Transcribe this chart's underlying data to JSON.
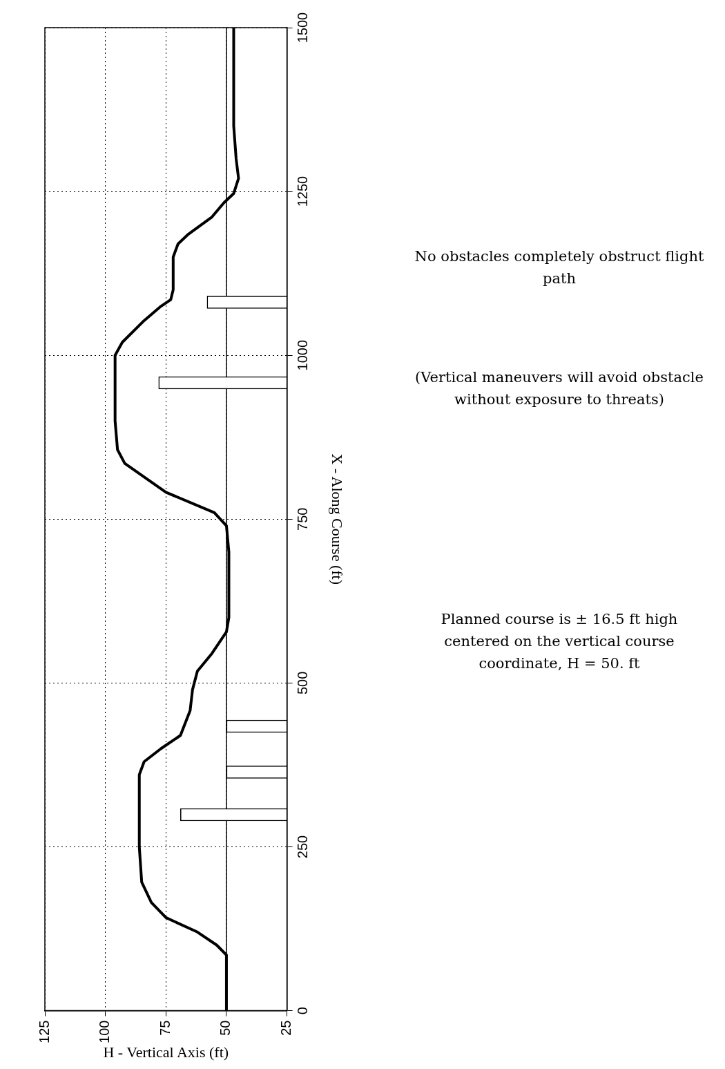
{
  "chart_data": {
    "type": "line",
    "orientation": "horizontal",
    "xlabel": "H - Vertical Axis (ft)",
    "ylabel": "X - Along Course (ft)",
    "xlim": [
      125,
      25
    ],
    "xticks": [
      125,
      100,
      75,
      50,
      25
    ],
    "ylim": [
      0,
      1500
    ],
    "yticks": [
      0,
      250,
      500,
      750,
      1000,
      1250,
      1500
    ],
    "grid": true,
    "ref_lines": [
      {
        "axis": "x",
        "value": 50,
        "color": "#000000"
      }
    ],
    "series": [
      {
        "color": "#000000",
        "x": [
          0,
          85,
          100,
          120,
          142,
          165,
          196,
          250,
          300,
          360,
          380,
          400,
          420,
          458,
          490,
          518,
          545,
          578,
          600,
          700,
          740,
          760,
          791,
          835,
          856,
          900,
          1000,
          1020,
          1053,
          1075,
          1085,
          1100,
          1150,
          1170,
          1184,
          1211,
          1233,
          1247,
          1270,
          1300,
          1350,
          1400,
          1500
        ],
        "values": [
          50,
          50,
          54,
          62,
          75,
          81,
          85,
          86,
          86,
          86,
          84,
          77,
          69,
          65,
          64,
          62,
          56,
          50,
          49,
          49,
          50,
          55,
          75,
          92,
          95,
          96,
          96,
          93,
          84,
          77,
          73,
          72,
          72,
          70,
          66,
          56,
          51,
          47,
          45,
          46,
          47,
          47,
          47
        ]
      },
      {
        "type": "bar",
        "color": "#ffffff",
        "x": [
          299,
          364,
          434,
          958,
          1081
        ],
        "values": [
          69,
          50,
          50,
          78,
          58
        ]
      }
    ],
    "annotations": [
      "No obstacles completely obstruct flight path",
      "(Vertical maneuvers will avoid obstacle without exposure to threats)",
      "Planned course is ± 16.5 ft high centered on the vertical course coordinate, H = 50. ft"
    ]
  }
}
